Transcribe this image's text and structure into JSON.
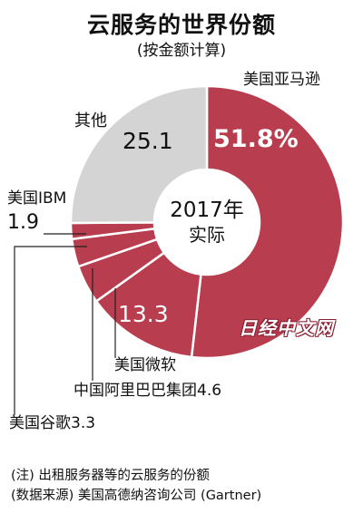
{
  "header": {
    "title": "云服务的世界份额",
    "subtitle": "(按金额计算)"
  },
  "chart_data": {
    "type": "pie",
    "style": "donut",
    "center_text": [
      "2017年",
      "实际"
    ],
    "slices": [
      {
        "name": "美国亚马逊",
        "value": 51.8,
        "value_label": "51.8%",
        "color": "#b83e4f"
      },
      {
        "name": "美国微软",
        "value": 13.3,
        "value_label": "13.3",
        "color": "#b83e4f"
      },
      {
        "name": "中国阿里巴巴集团",
        "value": 4.6,
        "value_label": "4.6",
        "color": "#b83e4f"
      },
      {
        "name": "美国谷歌",
        "value": 3.3,
        "value_label": "3.3",
        "color": "#b83e4f"
      },
      {
        "name": "美国IBM",
        "value": 1.9,
        "value_label": "1.9",
        "color": "#b83e4f"
      },
      {
        "name": "其他",
        "value": 25.1,
        "value_label": "25.1",
        "color": "#d4d4d4"
      }
    ]
  },
  "labels": {
    "amazon": "美国亚马逊",
    "amazon_value": "51.8%",
    "microsoft": "美国微软",
    "microsoft_value": "13.3",
    "alibaba": "中国阿里巴巴集团4.6",
    "google": "美国谷歌3.3",
    "ibm": "美国IBM",
    "ibm_value": "1.9",
    "other": "其他",
    "other_value": "25.1",
    "center_year": "2017年",
    "center_note": "实际"
  },
  "watermark": "日经中文网",
  "notes": {
    "note1": "(注) 出租服务器等的云服务的份额",
    "note2": "(数据来源) 美国高德纳咨询公司 (Gartner)"
  },
  "colors": {
    "accent": "#b83e4f",
    "other": "#d4d4d4",
    "separator": "#ffffff"
  }
}
